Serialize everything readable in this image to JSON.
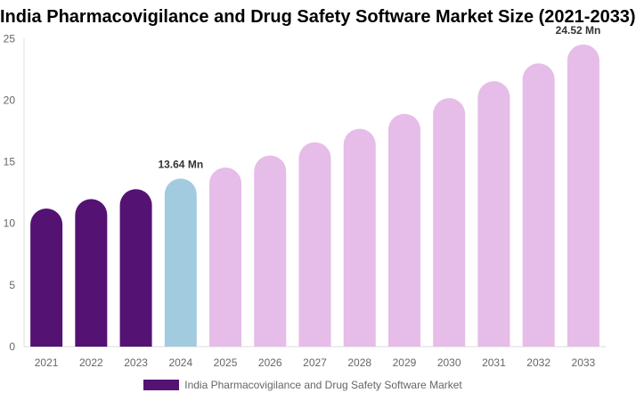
{
  "chart_data": {
    "type": "bar",
    "title": "India Pharmacovigilance and Drug Safety Software Market Size (2021-2033)",
    "categories": [
      "2021",
      "2022",
      "2023",
      "2024",
      "2025",
      "2026",
      "2027",
      "2028",
      "2029",
      "2030",
      "2031",
      "2032",
      "2033"
    ],
    "series": [
      {
        "name": "India Pharmacovigilance and Drug Safety Software Market",
        "values": [
          11.21,
          11.98,
          12.78,
          13.64,
          14.54,
          15.51,
          16.59,
          17.68,
          18.89,
          20.17,
          21.54,
          22.99,
          24.52
        ]
      }
    ],
    "data_labels": {
      "2024": "13.64 Mn",
      "2033": "24.52 Mn"
    },
    "ylim": [
      0,
      25
    ],
    "yticks": [
      0,
      5,
      10,
      15,
      20,
      25
    ],
    "xlabel": "",
    "ylabel": "",
    "grid": false,
    "legend": "bottom",
    "colors": {
      "historical": "#541273",
      "base_year": "#a3cbdf",
      "forecast": "#e6bce8",
      "legend": "#541273"
    },
    "bar_color_by_year": [
      "historical",
      "historical",
      "historical",
      "base_year",
      "forecast",
      "forecast",
      "forecast",
      "forecast",
      "forecast",
      "forecast",
      "forecast",
      "forecast",
      "forecast"
    ]
  }
}
